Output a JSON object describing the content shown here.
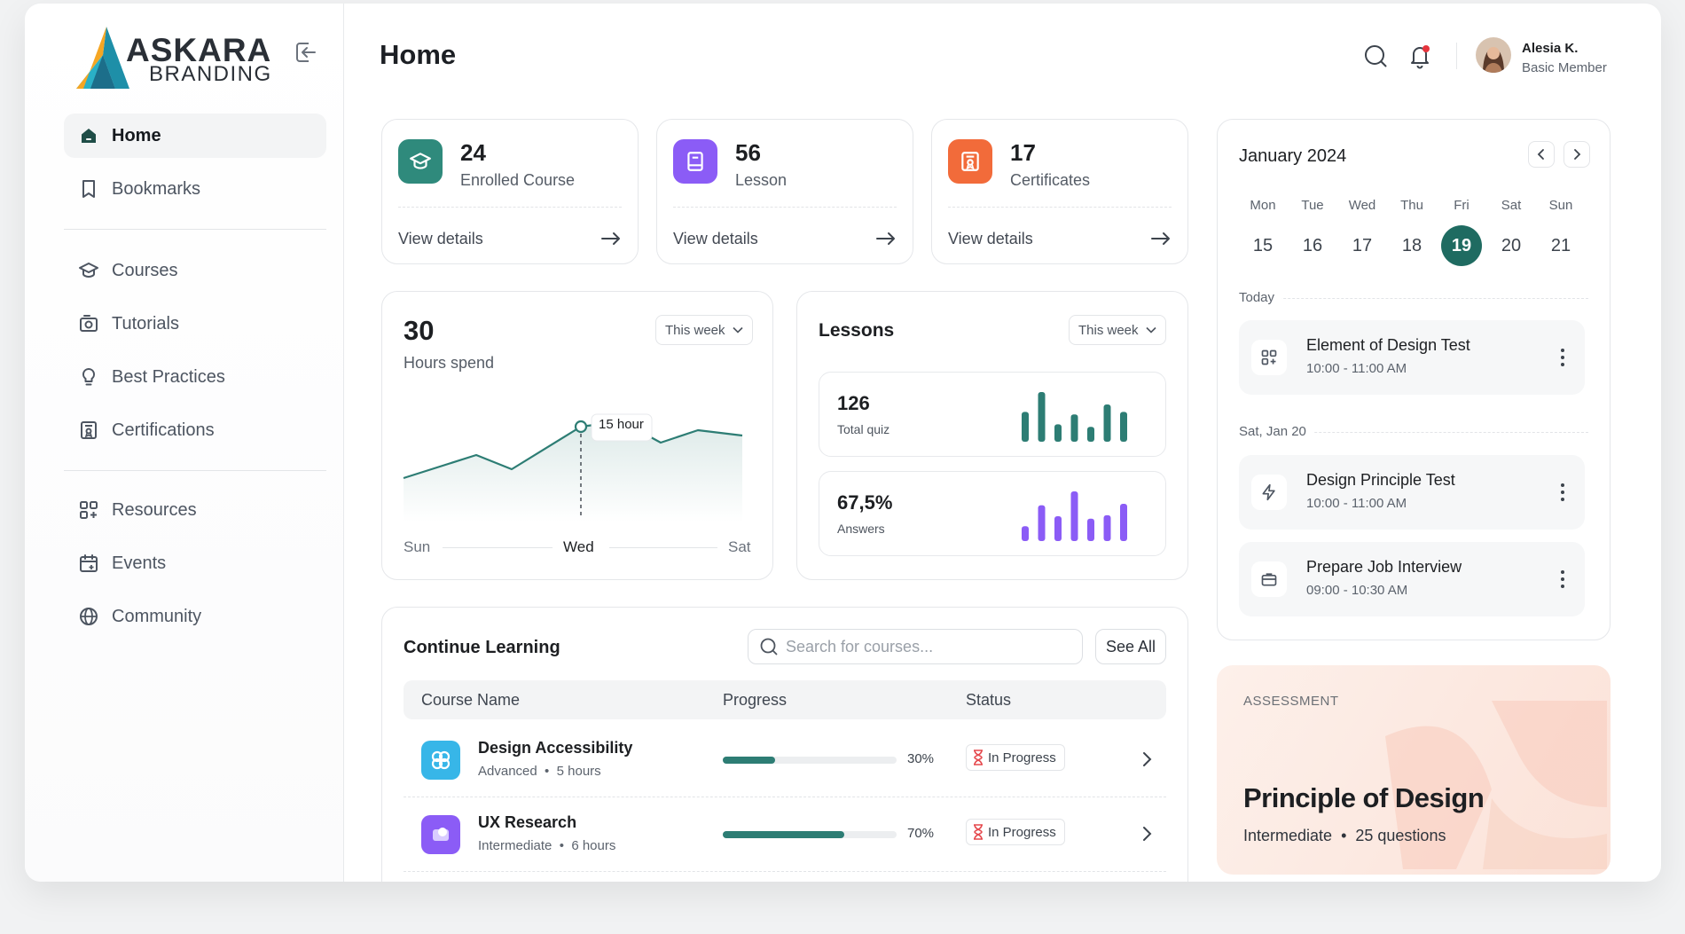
{
  "brand": {
    "name_line1": "ASKARA",
    "name_line2": "BRANDING"
  },
  "sidebar": {
    "group1": [
      {
        "label": "Home",
        "icon": "home-icon",
        "active": true
      },
      {
        "label": "Bookmarks",
        "icon": "bookmark-icon"
      }
    ],
    "group2": [
      {
        "label": "Courses",
        "icon": "graduation-cap-icon"
      },
      {
        "label": "Tutorials",
        "icon": "tutorial-icon"
      },
      {
        "label": "Best Practices",
        "icon": "lightbulb-icon"
      },
      {
        "label": "Certifications",
        "icon": "certificate-icon"
      }
    ],
    "group3": [
      {
        "label": "Resources",
        "icon": "grid-plus-icon"
      },
      {
        "label": "Events",
        "icon": "calendar-icon"
      },
      {
        "label": "Community",
        "icon": "globe-icon"
      }
    ]
  },
  "header": {
    "title": "Home",
    "user": {
      "name": "Alesia K.",
      "role": "Basic Member"
    }
  },
  "stats": [
    {
      "value": "24",
      "label": "Enrolled Course",
      "link": "View details",
      "color": "#2f8a7c",
      "icon": "graduation-cap-icon"
    },
    {
      "value": "56",
      "label": "Lesson",
      "link": "View details",
      "color": "#8b5cf6",
      "icon": "book-icon"
    },
    {
      "value": "17",
      "label": "Certificates",
      "link": "View details",
      "color": "#f26b3a",
      "icon": "certificate-icon"
    }
  ],
  "hours": {
    "value": "30",
    "label": "Hours spend",
    "range": "This week",
    "tooltip": "15 hour",
    "x_start": "Sun",
    "x_mid": "Wed",
    "x_end": "Sat"
  },
  "lessons": {
    "title": "Lessons",
    "range": "This week",
    "quiz": {
      "value": "126",
      "label": "Total quiz",
      "bars": [
        0.6,
        1.0,
        0.35,
        0.55,
        0.3,
        0.75,
        0.6
      ],
      "color": "#2d7d74"
    },
    "answers": {
      "value": "67,5%",
      "label": "Answers",
      "bars": [
        0.3,
        0.72,
        0.5,
        1.0,
        0.45,
        0.52,
        0.75
      ],
      "color": "#8b5cf6"
    }
  },
  "learning": {
    "title": "Continue Learning",
    "search_placeholder": "Search for courses...",
    "see_all": "See All",
    "columns": [
      "Course Name",
      "Progress",
      "Status"
    ],
    "rows": [
      {
        "name": "Design Accessibility",
        "level": "Advanced",
        "duration": "5 hours",
        "progress": 0.3,
        "pct": "30%",
        "status": "In Progress",
        "color": "#37b6e8"
      },
      {
        "name": "UX Research",
        "level": "Intermediate",
        "duration": "6 hours",
        "progress": 0.7,
        "pct": "70%",
        "status": "In Progress",
        "color": "#8b5cf6"
      }
    ]
  },
  "calendar": {
    "title": "January 2024",
    "days": [
      {
        "name": "Mon",
        "date": "15"
      },
      {
        "name": "Tue",
        "date": "16"
      },
      {
        "name": "Wed",
        "date": "17"
      },
      {
        "name": "Thu",
        "date": "18"
      },
      {
        "name": "Fri",
        "date": "19",
        "selected": true
      },
      {
        "name": "Sat",
        "date": "20"
      },
      {
        "name": "Sun",
        "date": "21"
      }
    ],
    "today_label": "Today",
    "later_label": "Sat, Jan 20",
    "events": [
      {
        "title": "Element of Design Test",
        "time": "10:00 - 11:00 AM",
        "icon": "grid-plus-icon"
      },
      {
        "title": "Design Principle Test",
        "time": "10:00 - 11:00 AM",
        "icon": "lightning-icon"
      },
      {
        "title": "Prepare Job Interview",
        "time": "09:00 - 10:30 AM",
        "icon": "briefcase-icon"
      }
    ]
  },
  "assessment": {
    "tag": "ASSESSMENT",
    "title": "Principle of Design",
    "level": "Intermediate",
    "questions": "25 questions"
  },
  "colors": {
    "accent": "#1f6b61",
    "teal": "#2d7d74",
    "purple": "#8b5cf6",
    "orange": "#f26b3a"
  }
}
